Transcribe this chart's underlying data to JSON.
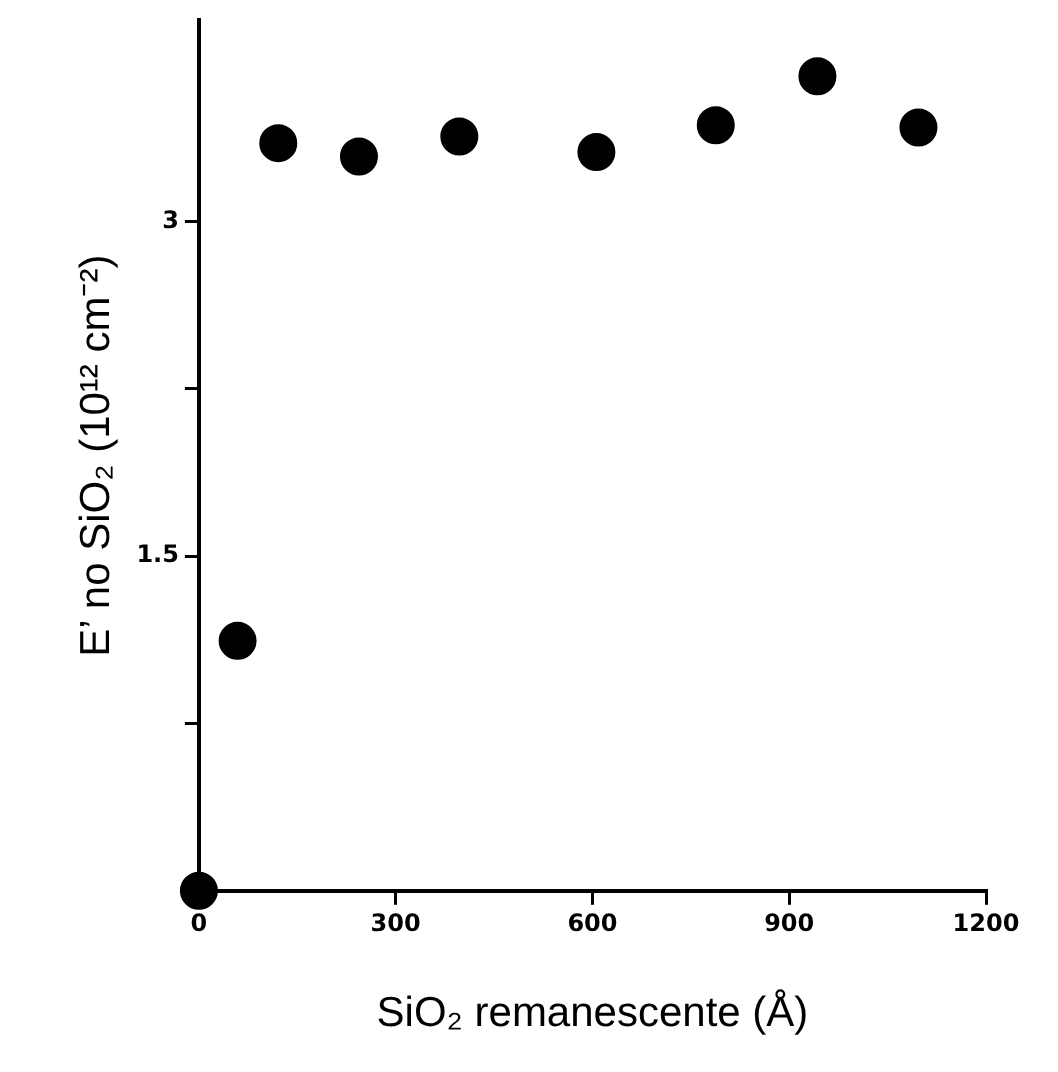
{
  "chart_data": {
    "type": "scatter",
    "xlabel": "SiO₂ remanescente (Å)",
    "ylabel": "E’ no SiO₂ (10¹² cm⁻²)",
    "x": [
      0,
      59,
      121,
      244,
      397,
      606,
      788,
      943,
      1097
    ],
    "series": [
      {
        "color": "#000000",
        "values": [
          0,
          1.12,
          3.35,
          3.29,
          3.38,
          3.31,
          3.43,
          3.65,
          3.42
        ]
      }
    ],
    "xlim": [
      0,
      1200
    ],
    "xticks": [
      0,
      300,
      600,
      900,
      1200
    ],
    "ylim": [
      0,
      3.9
    ],
    "yticks": [
      {
        "value": 0.75,
        "label": null
      },
      1.5,
      {
        "value": 2.25,
        "label": null
      },
      3
    ],
    "marker": "circle",
    "grid": false,
    "legend": false
  }
}
